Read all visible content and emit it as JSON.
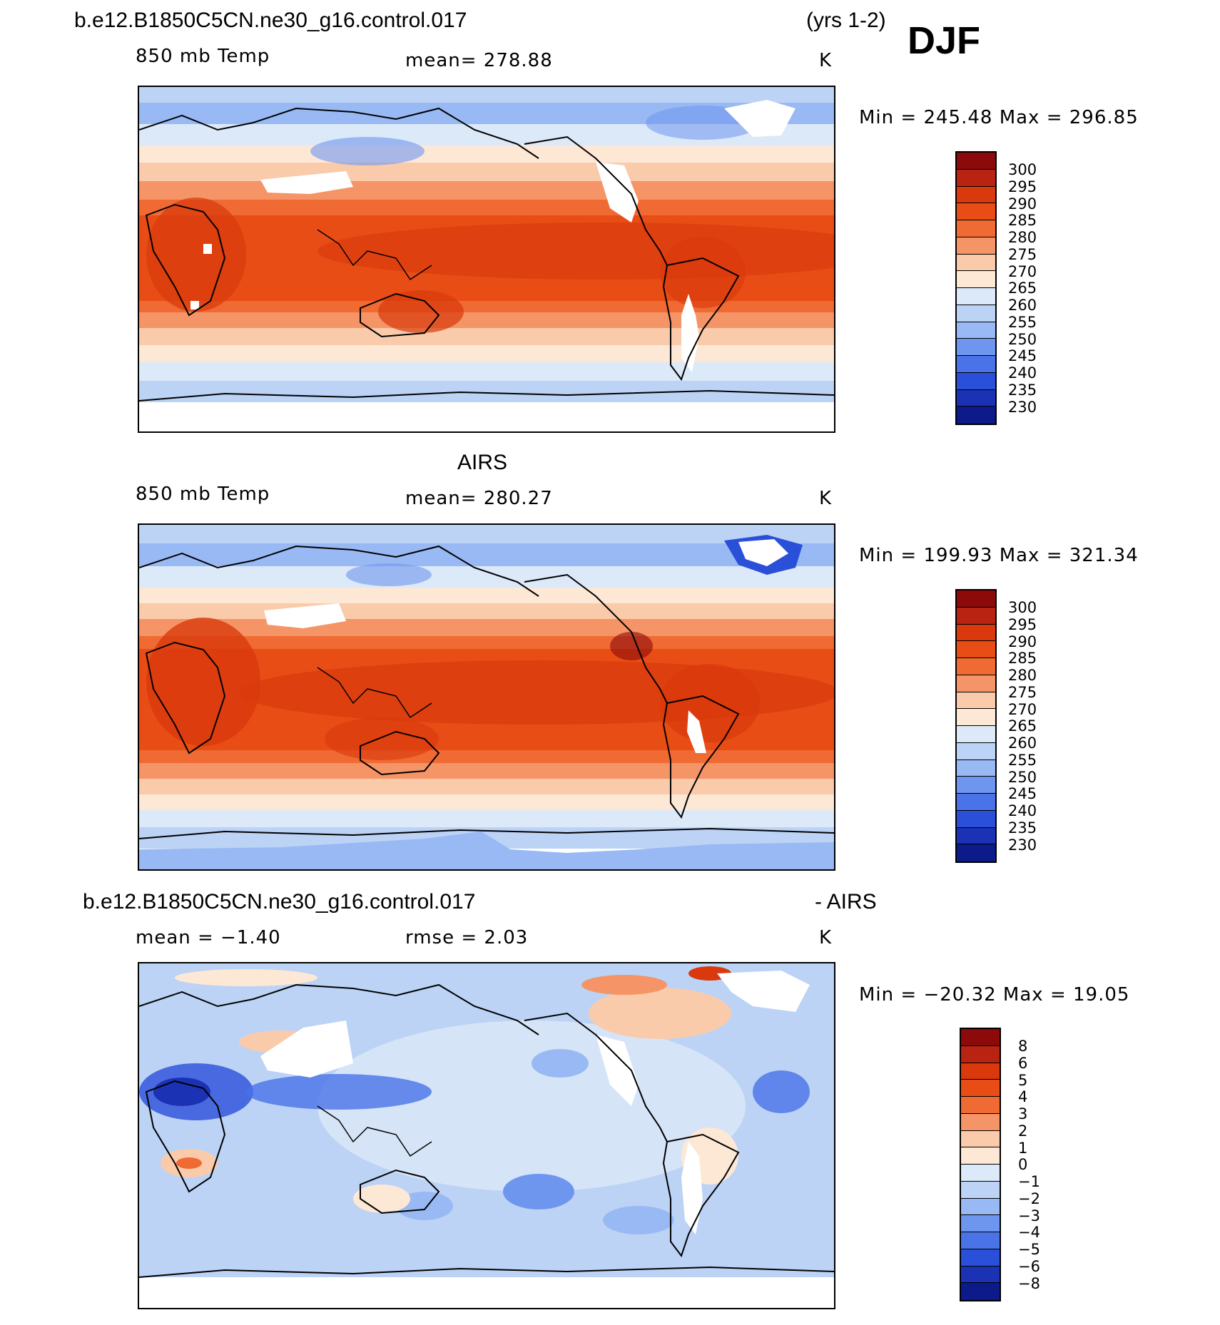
{
  "header": {
    "case_name": "b.e12.B1850C5CN.ne30_g16.control.017",
    "years": "(yrs 1-2)",
    "season": "DJF"
  },
  "panels": [
    {
      "id": "model",
      "title": "",
      "left_label": "850 mb Temp",
      "center_label": "mean=  278.88",
      "units": "K",
      "minmax": "Min  =  245.48  Max  =  296.85",
      "colorbar": {
        "labels": [
          "300",
          "295",
          "290",
          "285",
          "280",
          "275",
          "270",
          "265",
          "260",
          "255",
          "250",
          "245",
          "240",
          "235",
          "230"
        ],
        "colors": [
          "#8c0a0a",
          "#b82411",
          "#d9390c",
          "#e84d15",
          "#f06a33",
          "#f59467",
          "#facbaa",
          "#fde8d6",
          "#dce9f8",
          "#bcd3f5",
          "#98b9f3",
          "#6f96ef",
          "#4a73e8",
          "#2a4fd9",
          "#1a32b3",
          "#0d1a8a"
        ]
      }
    },
    {
      "id": "obs",
      "title": "AIRS",
      "left_label": "850 mb Temp",
      "center_label": "mean=  280.27",
      "units": "K",
      "minmax": "Min  =  199.93  Max  =  321.34",
      "colorbar": {
        "labels": [
          "300",
          "295",
          "290",
          "285",
          "280",
          "275",
          "270",
          "265",
          "260",
          "255",
          "250",
          "245",
          "240",
          "235",
          "230"
        ],
        "colors": [
          "#8c0a0a",
          "#b82411",
          "#d9390c",
          "#e84d15",
          "#f06a33",
          "#f59467",
          "#facbaa",
          "#fde8d6",
          "#dce9f8",
          "#bcd3f5",
          "#98b9f3",
          "#6f96ef",
          "#4a73e8",
          "#2a4fd9",
          "#1a32b3",
          "#0d1a8a"
        ]
      }
    },
    {
      "id": "diff",
      "title_left": "b.e12.B1850C5CN.ne30_g16.control.017",
      "title_right": "- AIRS",
      "left_label": "mean =    −1.40",
      "center_label": "rmse =      2.03",
      "units": "K",
      "minmax": "Min  =  −20.32  Max  =    19.05",
      "colorbar": {
        "labels": [
          "8",
          "6",
          "5",
          "4",
          "3",
          "2",
          "1",
          "0",
          "−1",
          "−2",
          "−3",
          "−4",
          "−5",
          "−6",
          "−8"
        ],
        "colors": [
          "#8c0a0a",
          "#b82411",
          "#d9390c",
          "#e84d15",
          "#f06a33",
          "#f59467",
          "#facbaa",
          "#fde8d6",
          "#dce9f8",
          "#bcd3f5",
          "#98b9f3",
          "#6f96ef",
          "#4a73e8",
          "#2a4fd9",
          "#1a32b3",
          "#0d1a8a"
        ]
      }
    }
  ]
}
